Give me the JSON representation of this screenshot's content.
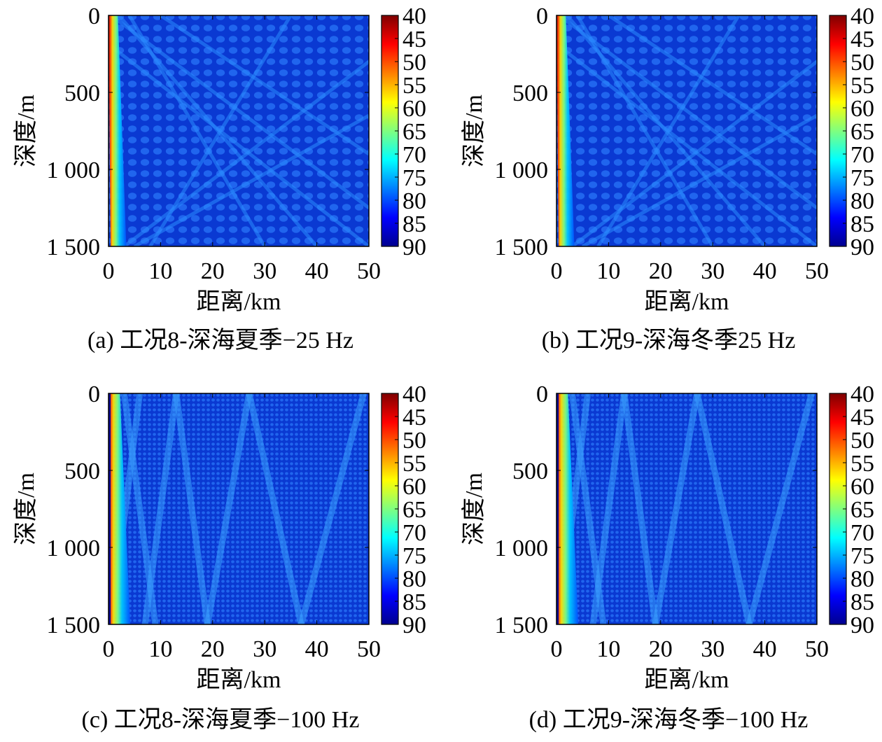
{
  "figure": {
    "panels": [
      {
        "caption": "(a) 工况8-深海夏季−25 Hz"
      },
      {
        "caption": "(b) 工况9-深海冬季25 Hz"
      },
      {
        "caption": "(c) 工况8-深海夏季−100 Hz"
      },
      {
        "caption": "(d) 工况9-深海冬季−100 Hz"
      }
    ]
  },
  "chart_data": [
    {
      "type": "heatmap",
      "title": "(a) 工况8-深海夏季−25 Hz",
      "frequency_hz": 25,
      "xlabel": "距离/km",
      "ylabel": "深度/m",
      "xlim": [
        0,
        50
      ],
      "ylim": [
        0,
        1500
      ],
      "x_ticks": [
        0,
        10,
        20,
        30,
        40,
        50
      ],
      "y_ticks": [
        0,
        500,
        1000,
        1500
      ],
      "y_tick_labels": [
        "0",
        "500",
        "1 000",
        "1 500"
      ],
      "colorbar_ticks": [
        40,
        45,
        50,
        55,
        60,
        65,
        70,
        75,
        80,
        85,
        90
      ],
      "colorbar_range": [
        40,
        90
      ],
      "colormap": [
        "#7f0000",
        "#ff0000",
        "#ff7f00",
        "#ffff00",
        "#7fff7f",
        "#00ffff",
        "#007fff",
        "#0000ff",
        "#00008f"
      ]
    },
    {
      "type": "heatmap",
      "title": "(b) 工况9-深海冬季25 Hz",
      "frequency_hz": 25,
      "xlabel": "距离/km",
      "ylabel": "深度/m",
      "xlim": [
        0,
        50
      ],
      "ylim": [
        0,
        1500
      ],
      "x_ticks": [
        0,
        10,
        20,
        30,
        40,
        50
      ],
      "y_ticks": [
        0,
        500,
        1000,
        1500
      ],
      "y_tick_labels": [
        "0",
        "500",
        "1 000",
        "1 500"
      ],
      "colorbar_ticks": [
        40,
        45,
        50,
        55,
        60,
        65,
        70,
        75,
        80,
        85,
        90
      ],
      "colorbar_range": [
        40,
        90
      ],
      "colormap": [
        "#7f0000",
        "#ff0000",
        "#ff7f00",
        "#ffff00",
        "#7fff7f",
        "#00ffff",
        "#007fff",
        "#0000ff",
        "#00008f"
      ]
    },
    {
      "type": "heatmap",
      "title": "(c) 工况8-深海夏季−100 Hz",
      "frequency_hz": 100,
      "xlabel": "距离/km",
      "ylabel": "深度/m",
      "xlim": [
        0,
        50
      ],
      "ylim": [
        0,
        1500
      ],
      "x_ticks": [
        0,
        10,
        20,
        30,
        40,
        50
      ],
      "y_ticks": [
        0,
        500,
        1000,
        1500
      ],
      "y_tick_labels": [
        "0",
        "500",
        "1 000",
        "1 500"
      ],
      "colorbar_ticks": [
        40,
        45,
        50,
        55,
        60,
        65,
        70,
        75,
        80,
        85,
        90
      ],
      "colorbar_range": [
        40,
        90
      ],
      "colormap": [
        "#7f0000",
        "#ff0000",
        "#ff7f00",
        "#ffff00",
        "#7fff7f",
        "#00ffff",
        "#007fff",
        "#0000ff",
        "#00008f"
      ]
    },
    {
      "type": "heatmap",
      "title": "(d) 工况9-深海冬季−100 Hz",
      "frequency_hz": 100,
      "xlabel": "距离/km",
      "ylabel": "深度/m",
      "xlim": [
        0,
        50
      ],
      "ylim": [
        0,
        1500
      ],
      "x_ticks": [
        0,
        10,
        20,
        30,
        40,
        50
      ],
      "y_ticks": [
        0,
        500,
        1000,
        1500
      ],
      "y_tick_labels": [
        "0",
        "500",
        "1 000",
        "1 500"
      ],
      "colorbar_ticks": [
        40,
        45,
        50,
        55,
        60,
        65,
        70,
        75,
        80,
        85,
        90
      ],
      "colorbar_range": [
        40,
        90
      ],
      "colormap": [
        "#7f0000",
        "#ff0000",
        "#ff7f00",
        "#ffff00",
        "#7fff7f",
        "#00ffff",
        "#007fff",
        "#0000ff",
        "#00008f"
      ]
    }
  ]
}
